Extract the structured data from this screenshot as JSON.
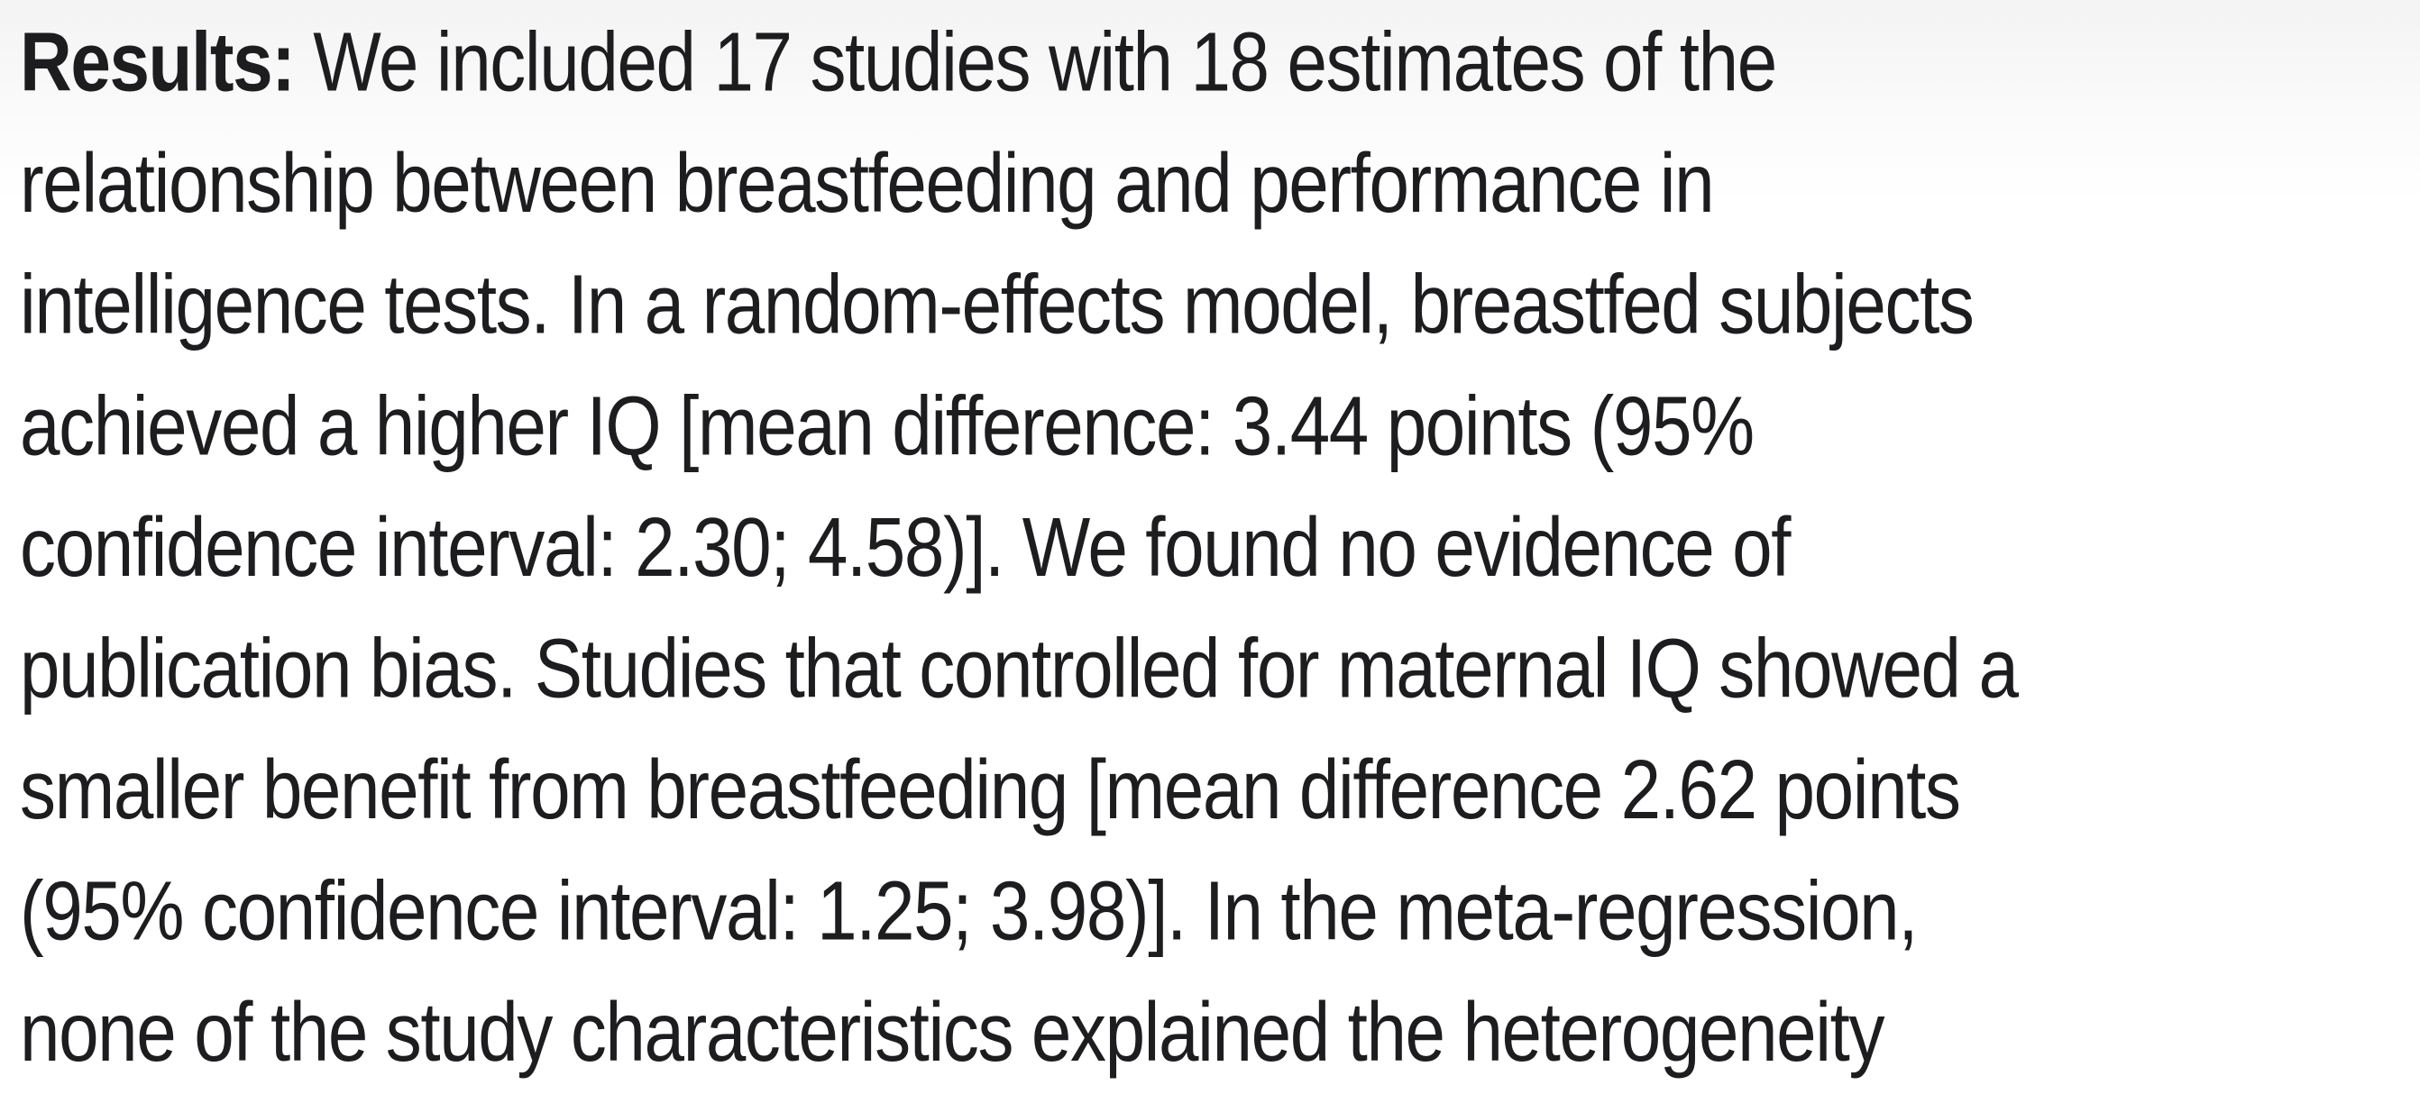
{
  "page": {
    "background_color": "#ffffff",
    "top_tint_color": "#f4f4f5",
    "text_color": "#1d1d1f"
  },
  "abstract": {
    "section_label": "Results:",
    "lines": [
      "We included 17 studies with 18 estimates of the",
      "relationship between breastfeeding and performance in",
      "intelligence tests. In a random-effects model, breastfed subjects",
      "achieved a higher IQ [mean difference: 3.44 points (95%",
      "confidence interval: 2.30; 4.58)]. We found no evidence of",
      "publication bias. Studies that controlled for maternal IQ showed a",
      "smaller benefit from breastfeeding [mean difference 2.62 points",
      "(95% confidence interval: 1.25; 3.98)]. In the meta-regression,",
      "none of the study characteristics explained the heterogeneity"
    ],
    "stats": {
      "studies_included": "17",
      "estimates": "18",
      "mean_difference_points": "3.44",
      "ci_95": "2.30; 4.58",
      "maternal_iq_adjusted_mean_difference_points": "2.62",
      "maternal_iq_adjusted_ci_95": "1.25; 3.98"
    }
  }
}
